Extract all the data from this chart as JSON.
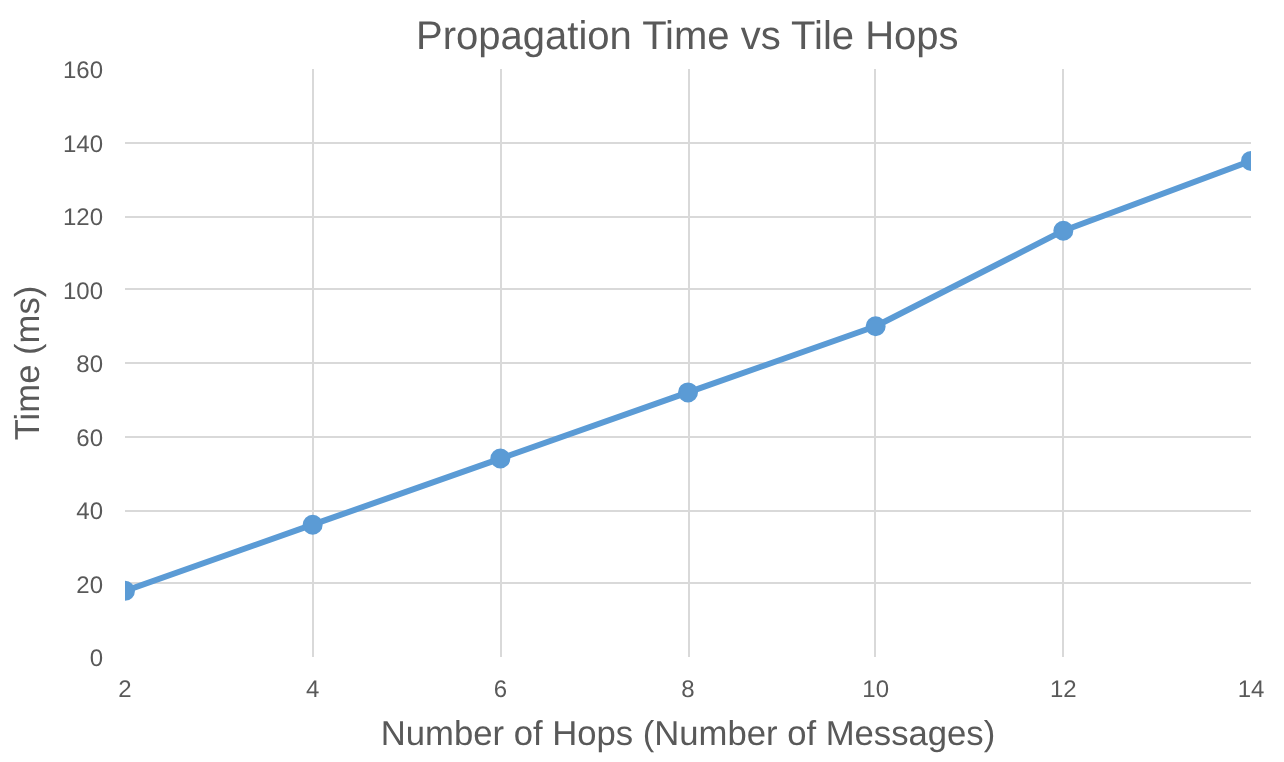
{
  "chart_data": {
    "type": "line",
    "title": "Propagation Time vs Tile Hops",
    "xlabel": "Number of Hops (Number of Messages)",
    "ylabel": "Time (ms)",
    "x": [
      2,
      4,
      6,
      8,
      10,
      12,
      14
    ],
    "series": [
      {
        "color": "#5b9bd5",
        "values": [
          18,
          36,
          54,
          72,
          90,
          116,
          135
        ]
      }
    ],
    "xlim": [
      2,
      14
    ],
    "xticks": [
      2,
      4,
      6,
      8,
      10,
      12,
      14
    ],
    "ylim": [
      0,
      160
    ],
    "yticks": [
      0,
      20,
      40,
      60,
      80,
      100,
      120,
      140,
      160
    ],
    "grid": true,
    "marker": "circle",
    "line_style": "solid"
  }
}
